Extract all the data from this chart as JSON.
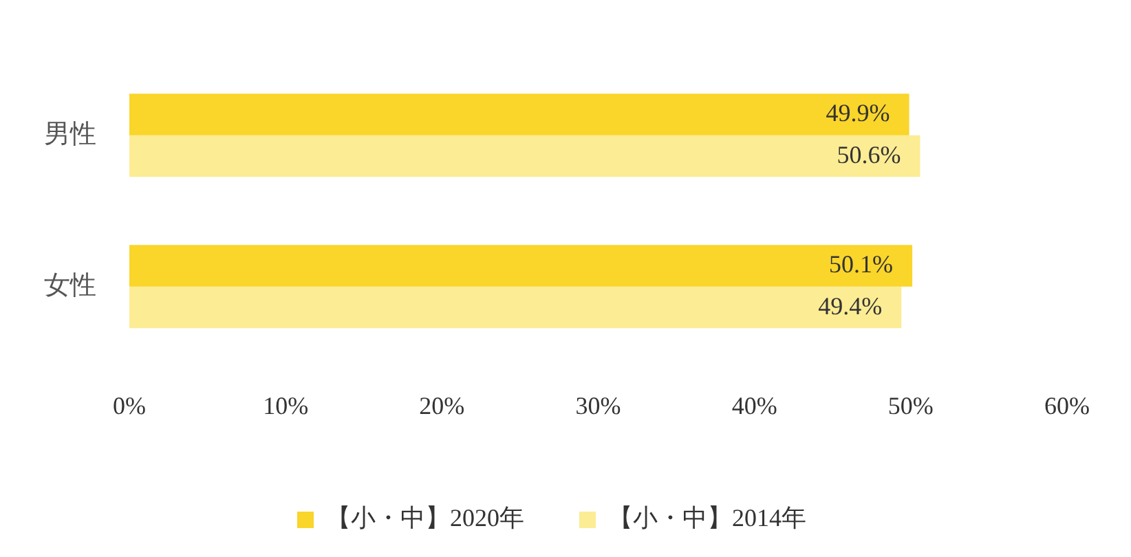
{
  "chart_data": {
    "type": "bar",
    "orientation": "horizontal",
    "categories": [
      "男性",
      "女性"
    ],
    "series": [
      {
        "name": "【小・中】2020年",
        "color": "#fad52a",
        "values": [
          49.9,
          50.1
        ],
        "value_labels": [
          "49.9%",
          "50.1%"
        ]
      },
      {
        "name": "【小・中】2014年",
        "color": "#fcec94",
        "values": [
          50.6,
          49.4
        ],
        "value_labels": [
          "50.6%",
          "49.4%"
        ]
      }
    ],
    "xlim": [
      0,
      60
    ],
    "xticks": [
      {
        "value": 0,
        "label": "0%"
      },
      {
        "value": 10,
        "label": "10%"
      },
      {
        "value": 20,
        "label": "20%"
      },
      {
        "value": 30,
        "label": "30%"
      },
      {
        "value": 40,
        "label": "40%"
      },
      {
        "value": 50,
        "label": "50%"
      },
      {
        "value": 60,
        "label": "60%"
      }
    ],
    "grid": false,
    "legend": "bottom"
  }
}
